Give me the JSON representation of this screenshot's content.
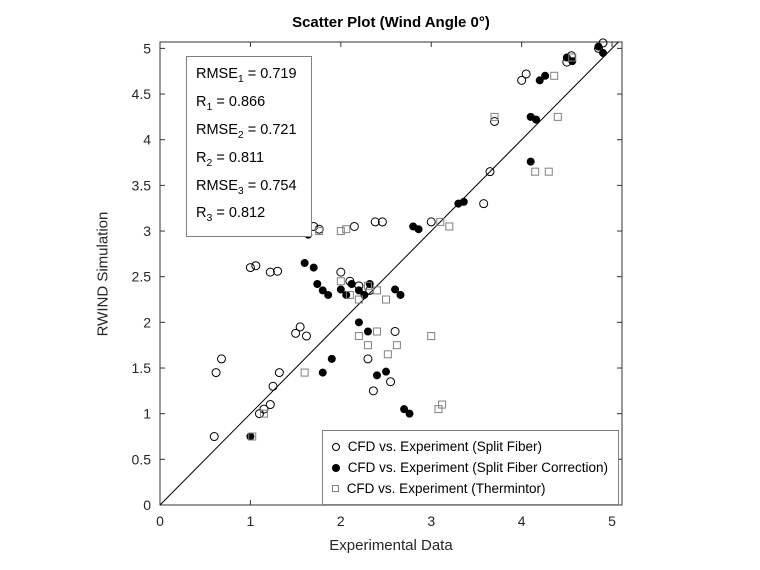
{
  "chart_data": {
    "type": "scatter",
    "title": "Scatter Plot (Wind Angle 0°)",
    "xlabel": "Experimental Data",
    "ylabel": "RWIND Simulation",
    "xlim": [
      0,
      5.11
    ],
    "ylim": [
      0,
      5.07
    ],
    "xticks": [
      "0",
      "1",
      "2",
      "3",
      "4",
      "5"
    ],
    "yticks": [
      "0",
      "0.5",
      "1",
      "1.5",
      "2",
      "2.5",
      "3",
      "3.5",
      "4",
      "4.5",
      "5"
    ],
    "grid": false,
    "legend_position": "bottom-right-inside",
    "identity_line": {
      "from": [
        0,
        0
      ],
      "to": [
        5.07,
        5.07
      ]
    },
    "stats": [
      {
        "name": "RMSE",
        "sub": "1",
        "rest": " = 0.719"
      },
      {
        "name": "R",
        "sub": "1",
        "rest": " = 0.866"
      },
      {
        "name": "RMSE",
        "sub": "2",
        "rest": " = 0.721"
      },
      {
        "name": "R",
        "sub": "2",
        "rest": " = 0.811"
      },
      {
        "name": "RMSE",
        "sub": "3",
        "rest": " = 0.754"
      },
      {
        "name": "R",
        "sub": "3",
        "rest": " = 0.812"
      }
    ],
    "series": [
      {
        "name": "CFD vs. Experiment (Split Fiber)",
        "marker": "circle-open",
        "color": "#000000",
        "points": [
          [
            0.6,
            0.75
          ],
          [
            0.62,
            1.45
          ],
          [
            0.68,
            1.6
          ],
          [
            1.0,
            2.6
          ],
          [
            1.06,
            2.62
          ],
          [
            1.1,
            1.0
          ],
          [
            1.15,
            1.05
          ],
          [
            1.22,
            1.1
          ],
          [
            1.25,
            1.3
          ],
          [
            1.22,
            2.55
          ],
          [
            1.3,
            2.56
          ],
          [
            1.32,
            1.45
          ],
          [
            1.5,
            1.88
          ],
          [
            1.55,
            1.95
          ],
          [
            1.62,
            1.85
          ],
          [
            1.7,
            3.05
          ],
          [
            1.76,
            3.02
          ],
          [
            2.0,
            2.55
          ],
          [
            2.1,
            2.45
          ],
          [
            2.15,
            3.05
          ],
          [
            2.2,
            2.4
          ],
          [
            2.32,
            2.35
          ],
          [
            2.38,
            3.1
          ],
          [
            2.46,
            3.1
          ],
          [
            2.3,
            1.6
          ],
          [
            2.36,
            1.25
          ],
          [
            2.55,
            1.35
          ],
          [
            2.6,
            1.9
          ],
          [
            3.0,
            3.1
          ],
          [
            3.58,
            3.3
          ],
          [
            3.65,
            3.65
          ],
          [
            3.7,
            4.2
          ],
          [
            4.0,
            4.65
          ],
          [
            4.05,
            4.72
          ],
          [
            4.5,
            4.85
          ],
          [
            4.55,
            4.92
          ],
          [
            4.85,
            5.0
          ],
          [
            4.9,
            5.06
          ]
        ]
      },
      {
        "name": "CFD vs. Experiment (Split Fiber Correction)",
        "marker": "circle-filled",
        "color": "#000000",
        "points": [
          [
            1.0,
            0.75
          ],
          [
            1.58,
            3.0
          ],
          [
            1.64,
            2.96
          ],
          [
            1.6,
            2.65
          ],
          [
            1.7,
            2.6
          ],
          [
            1.74,
            2.42
          ],
          [
            1.8,
            2.35
          ],
          [
            1.86,
            2.3
          ],
          [
            1.8,
            1.45
          ],
          [
            1.9,
            1.6
          ],
          [
            2.0,
            2.36
          ],
          [
            2.06,
            2.3
          ],
          [
            2.12,
            2.42
          ],
          [
            2.2,
            2.35
          ],
          [
            2.26,
            2.3
          ],
          [
            2.32,
            2.42
          ],
          [
            2.2,
            2.0
          ],
          [
            2.3,
            1.9
          ],
          [
            2.4,
            1.42
          ],
          [
            2.5,
            1.46
          ],
          [
            2.6,
            2.36
          ],
          [
            2.66,
            2.3
          ],
          [
            2.8,
            3.05
          ],
          [
            2.86,
            3.02
          ],
          [
            2.7,
            1.05
          ],
          [
            2.76,
            1.0
          ],
          [
            3.3,
            3.3
          ],
          [
            3.36,
            3.32
          ],
          [
            4.1,
            4.25
          ],
          [
            4.16,
            4.22
          ],
          [
            4.1,
            3.76
          ],
          [
            4.2,
            4.65
          ],
          [
            4.26,
            4.7
          ],
          [
            4.5,
            4.9
          ],
          [
            4.56,
            4.86
          ],
          [
            4.85,
            5.02
          ],
          [
            4.9,
            4.95
          ]
        ]
      },
      {
        "name": "CFD vs. Experiment (Thermintor)",
        "marker": "square-open",
        "color": "#808080",
        "points": [
          [
            1.02,
            0.75
          ],
          [
            1.15,
            1.0
          ],
          [
            1.6,
            1.45
          ],
          [
            1.76,
            3.0
          ],
          [
            2.0,
            3.0
          ],
          [
            2.06,
            3.02
          ],
          [
            2.0,
            2.45
          ],
          [
            2.1,
            2.3
          ],
          [
            2.2,
            2.25
          ],
          [
            2.3,
            2.4
          ],
          [
            2.4,
            2.35
          ],
          [
            2.2,
            1.85
          ],
          [
            2.3,
            1.75
          ],
          [
            2.4,
            1.9
          ],
          [
            2.52,
            1.65
          ],
          [
            2.5,
            2.25
          ],
          [
            2.62,
            1.75
          ],
          [
            3.0,
            1.85
          ],
          [
            3.08,
            1.05
          ],
          [
            3.12,
            1.1
          ],
          [
            3.1,
            3.1
          ],
          [
            3.2,
            3.05
          ],
          [
            3.7,
            4.25
          ],
          [
            4.15,
            3.65
          ],
          [
            4.3,
            3.65
          ],
          [
            4.4,
            4.25
          ],
          [
            4.36,
            4.7
          ],
          [
            4.56,
            4.9
          ]
        ]
      }
    ]
  }
}
